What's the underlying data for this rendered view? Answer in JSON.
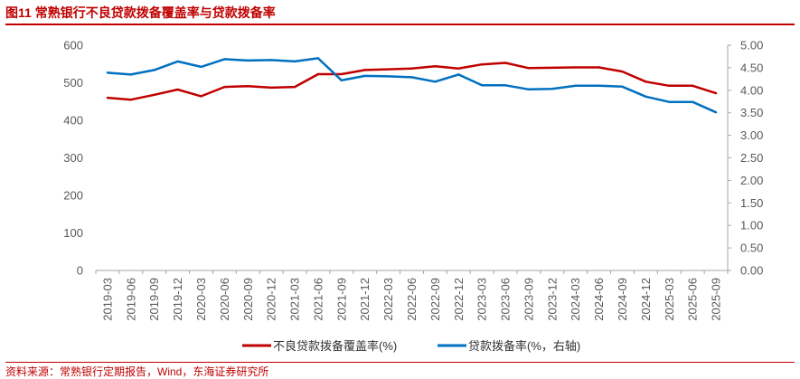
{
  "figure": {
    "title": "图11  常熟银行不良贷款拨备覆盖率与贷款拨备率",
    "source": "资料来源：常熟银行定期报告，Wind，东海证券研究所"
  },
  "chart_data": {
    "type": "line",
    "categories": [
      "2019-03",
      "2019-06",
      "2019-09",
      "2019-12",
      "2020-03",
      "2020-06",
      "2020-09",
      "2020-12",
      "2021-03",
      "2021-06",
      "2021-09",
      "2021-12",
      "2022-03",
      "2022-06",
      "2022-09",
      "2022-12",
      "2023-03",
      "2023-06",
      "2023-09",
      "2023-12",
      "2024-03",
      "2024-06",
      "2024-09",
      "2024-12",
      "2025-03",
      "2025-06",
      "2025-09"
    ],
    "y_left": {
      "ticks": [
        "0",
        "100",
        "200",
        "300",
        "400",
        "500",
        "600"
      ],
      "ylim": [
        0,
        600
      ]
    },
    "y_right": {
      "ticks": [
        "0.00",
        "0.50",
        "1.00",
        "1.50",
        "2.00",
        "2.50",
        "3.00",
        "3.50",
        "4.00",
        "4.50",
        "5.00"
      ],
      "ylim": [
        0,
        5
      ]
    },
    "series": [
      {
        "name": "不良贷款拨备覆盖率(%)",
        "axis": "left",
        "color": "#c00000",
        "values": [
          460,
          455,
          468,
          482,
          464,
          489,
          491,
          487,
          489,
          523,
          523,
          534,
          536,
          538,
          544,
          538,
          549,
          553,
          539,
          540,
          541,
          541,
          530,
          503,
          492,
          492,
          472
        ]
      },
      {
        "name": "贷款拨备率(%，右轴)",
        "axis": "right",
        "color": "#0070c0",
        "values": [
          4.39,
          4.35,
          4.45,
          4.64,
          4.52,
          4.69,
          4.66,
          4.67,
          4.64,
          4.71,
          4.22,
          4.32,
          4.31,
          4.29,
          4.19,
          4.35,
          4.11,
          4.11,
          4.02,
          4.03,
          4.1,
          4.1,
          4.08,
          3.86,
          3.74,
          3.74,
          3.51
        ]
      }
    ],
    "legend": "bottom",
    "grid": false
  }
}
